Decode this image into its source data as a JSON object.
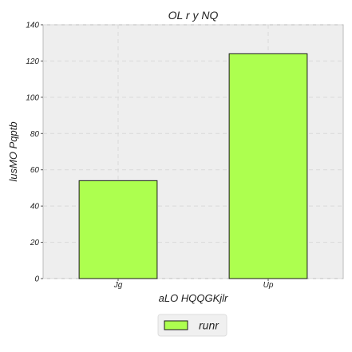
{
  "chart_data": {
    "type": "bar",
    "title": "OL r y NQ",
    "xlabel": "aLO  HQQGKjlr",
    "ylabel": "lusMO Pqptb",
    "categories": [
      "Jg",
      "Up"
    ],
    "series": [
      {
        "name": "runr",
        "values": [
          54,
          124
        ],
        "color": "#adff4f"
      }
    ],
    "ylim": [
      0,
      140
    ],
    "yticks": [
      0,
      20,
      40,
      60,
      80,
      100,
      120,
      140
    ],
    "grid": true,
    "legend_position": "bottom-center",
    "colors": {
      "plot_background": "#eeeeee",
      "bar_fill": "#adff4f",
      "bar_edge": "#1a1a1a",
      "grid": "#d9d9d9"
    }
  }
}
